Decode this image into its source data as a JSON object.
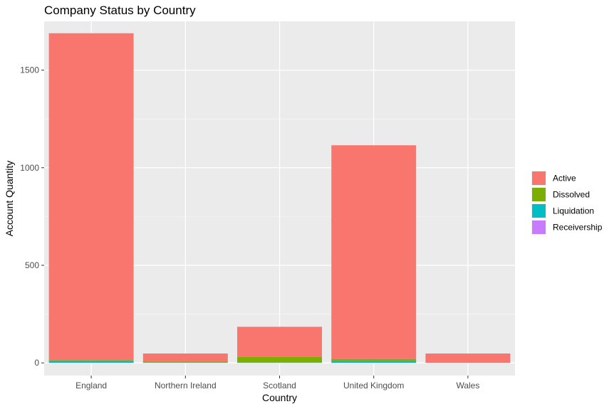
{
  "chart_data": {
    "type": "bar",
    "stacked": true,
    "title": "Company Status by Country",
    "xlabel": "Country",
    "ylabel": "Account Quantity",
    "categories": [
      "England",
      "Northern Ireland",
      "Scotland",
      "United Kingdom",
      "Wales"
    ],
    "series": [
      {
        "name": "Active",
        "color": "#F8766D",
        "values": [
          1675,
          42,
          155,
          1095,
          48
        ]
      },
      {
        "name": "Dissolved",
        "color": "#7CAE00",
        "values": [
          4,
          4,
          28,
          10,
          0
        ]
      },
      {
        "name": "Liquidation",
        "color": "#00BFC4",
        "values": [
          10,
          2,
          2,
          10,
          0
        ]
      },
      {
        "name": "Receivership",
        "color": "#C77CFF",
        "values": [
          0,
          0,
          0,
          0,
          0
        ]
      }
    ],
    "ylim": [
      -65,
      1750
    ],
    "yticks": [
      0,
      500,
      1000,
      1500
    ],
    "grid": true,
    "legend_position": "right"
  }
}
